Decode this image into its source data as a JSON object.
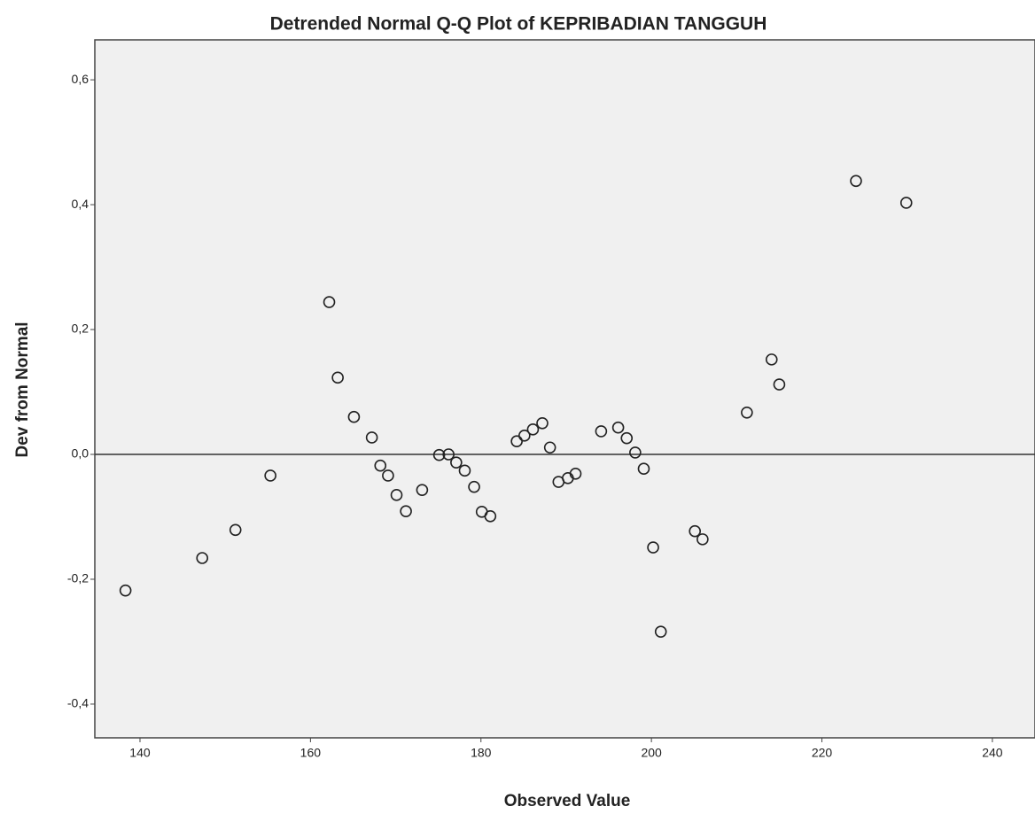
{
  "chart_data": {
    "type": "scatter",
    "title": "Detrended Normal Q-Q Plot of KEPRIBADIAN TANGGUH",
    "x_label": "Observed Value",
    "y_label": "Dev from Normal",
    "x": [
      138.3,
      147.3,
      151.2,
      155.3,
      162.2,
      163.2,
      165.1,
      167.2,
      168.2,
      169.1,
      170.1,
      171.2,
      173.1,
      175.1,
      176.2,
      177.1,
      178.1,
      179.2,
      180.1,
      181.1,
      184.2,
      185.1,
      186.1,
      187.2,
      188.1,
      189.1,
      190.2,
      191.1,
      194.1,
      196.1,
      197.1,
      198.1,
      199.1,
      200.2,
      201.1,
      205.1,
      206.0,
      211.2,
      214.1,
      215.0,
      224.0,
      229.9
    ],
    "values": [
      -0.218,
      -0.166,
      -0.121,
      -0.034,
      0.244,
      0.123,
      0.06,
      0.027,
      -0.018,
      -0.034,
      -0.065,
      -0.091,
      -0.057,
      -0.001,
      0.0,
      -0.013,
      -0.026,
      -0.052,
      -0.092,
      -0.099,
      0.021,
      0.03,
      0.04,
      0.05,
      0.011,
      -0.044,
      -0.038,
      -0.031,
      0.037,
      0.043,
      0.026,
      0.003,
      -0.023,
      -0.149,
      -0.284,
      -0.123,
      -0.136,
      0.067,
      0.152,
      0.112,
      0.438,
      0.403
    ],
    "color": "#222222",
    "reference_line": 0,
    "xlim": [
      134.7,
      245
    ],
    "ylim": [
      -0.454,
      0.664
    ],
    "xticks": [
      140,
      160,
      180,
      200,
      220,
      240
    ],
    "yticks": [
      {
        "value": -0.4,
        "label": "-0,4"
      },
      {
        "value": -0.2,
        "label": "-0,2"
      },
      {
        "value": 0,
        "label": "0,0"
      },
      {
        "value": 0.2,
        "label": "0,2"
      },
      {
        "value": 0.4,
        "label": "0,4"
      },
      {
        "value": 0.6,
        "label": "0,6"
      }
    ]
  }
}
